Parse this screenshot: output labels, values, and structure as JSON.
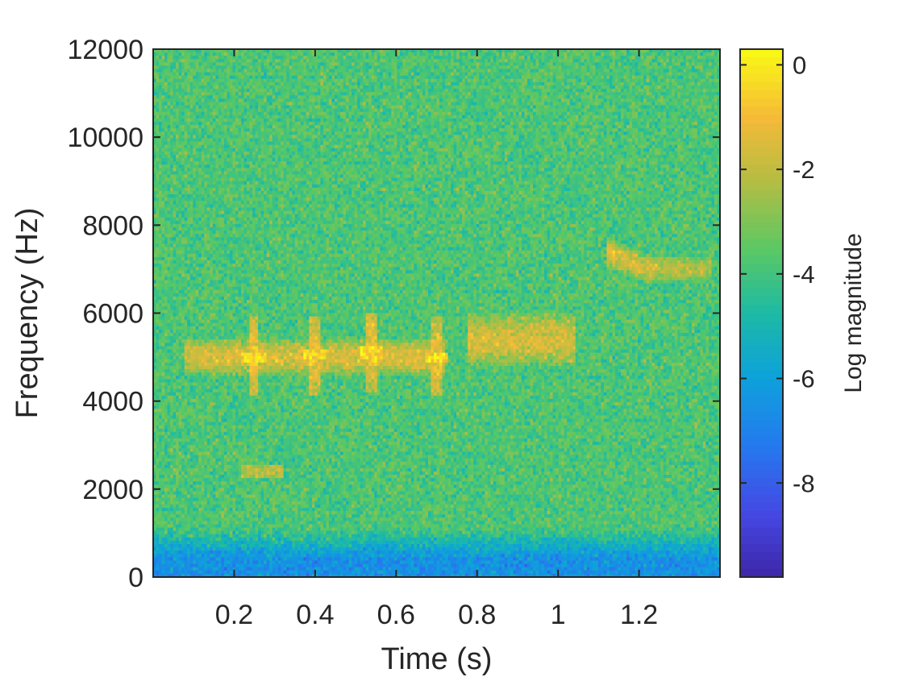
{
  "chart_data": {
    "type": "heatmap",
    "title": "",
    "xlabel": "Time (s)",
    "ylabel": "Frequency (Hz)",
    "xlim": [
      0.0,
      1.4
    ],
    "ylim": [
      0,
      12000
    ],
    "xticks": [
      0.2,
      0.4,
      0.6,
      0.8,
      1.0,
      1.2
    ],
    "xtick_labels": [
      "0.2",
      "0.4",
      "0.6",
      "0.8",
      "1",
      "1.2"
    ],
    "yticks": [
      0,
      2000,
      4000,
      6000,
      8000,
      10000,
      12000
    ],
    "ytick_labels": [
      "0",
      "2000",
      "4000",
      "6000",
      "8000",
      "10000",
      "12000"
    ],
    "colorbar": {
      "label": "Log magnitude",
      "clim": [
        -9.8,
        0.3
      ],
      "ticks": [
        0,
        -2,
        -4,
        -6,
        -8
      ],
      "tick_labels": [
        "0",
        "-2",
        "-4",
        "-6",
        "-8"
      ],
      "colormap": "parula"
    },
    "background_level": -3.8,
    "low_frequency_band": {
      "freq_max": 800,
      "level": -6.5
    },
    "features": [
      {
        "kind": "tonal-band",
        "t_start": 0.08,
        "t_end": 0.72,
        "freq_center": 5000,
        "freq_width": 800,
        "level": -1.5
      },
      {
        "kind": "pulse",
        "t": 0.25,
        "freq_center": 5000,
        "level": -0.8
      },
      {
        "kind": "pulse",
        "t": 0.4,
        "freq_center": 5050,
        "level": -0.8
      },
      {
        "kind": "pulse",
        "t": 0.54,
        "freq_center": 5100,
        "level": -0.8
      },
      {
        "kind": "pulse",
        "t": 0.7,
        "freq_center": 5000,
        "level": -0.8
      },
      {
        "kind": "broad-band",
        "t_start": 0.78,
        "t_end": 1.04,
        "freq_center": 5400,
        "freq_width": 1200,
        "level": -1.6
      },
      {
        "kind": "sweep",
        "t_start": 1.12,
        "t_end": 1.38,
        "freq_start": 7400,
        "freq_end": 7000,
        "level": -1.2
      },
      {
        "kind": "short-tone",
        "t": 0.27,
        "freq_center": 2400,
        "level": -2.2
      }
    ]
  },
  "colors": {
    "axis": "#262626",
    "frame": "#262626",
    "background": "#ffffff"
  }
}
